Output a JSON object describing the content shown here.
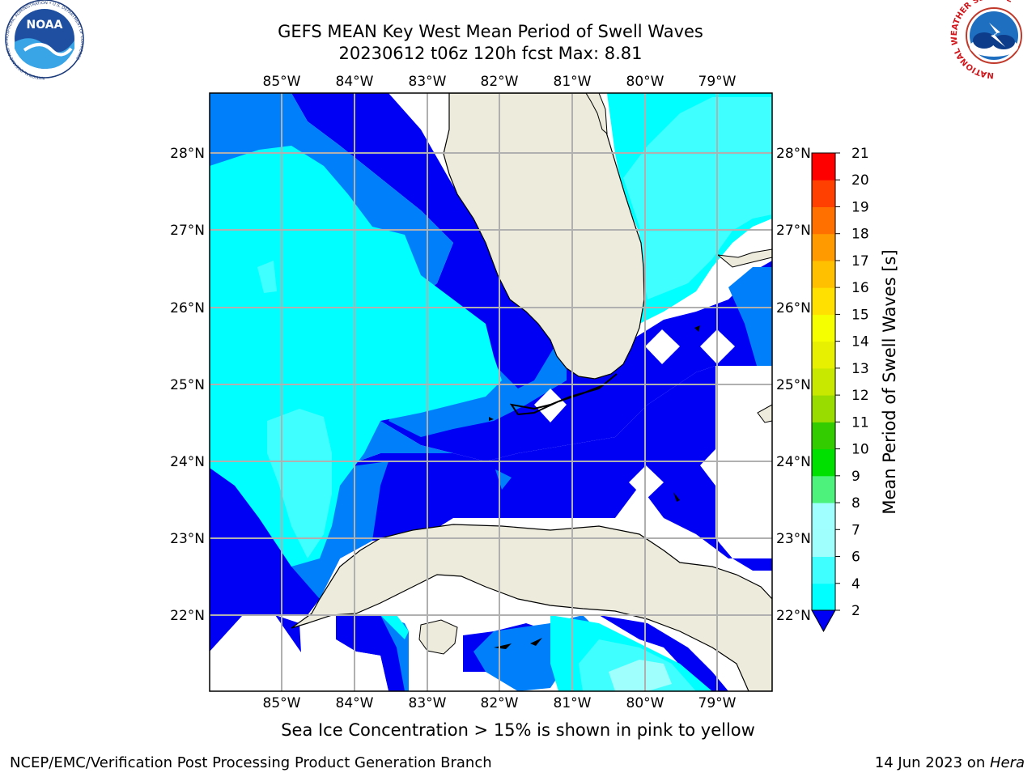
{
  "title": {
    "line1": "GEFS MEAN Key West Mean Period of Swell Waves",
    "line2": "20230612 t06z 120h fcst   Max: 8.81"
  },
  "map": {
    "lon_labels": [
      "85°W",
      "84°W",
      "83°W",
      "82°W",
      "81°W",
      "80°W",
      "79°W"
    ],
    "lat_labels": [
      "28°N",
      "27°N",
      "26°N",
      "25°N",
      "24°N",
      "23°N",
      "22°N"
    ],
    "colors": {
      "land": "#ecebdc",
      "coast": "#000000",
      "grid": "#b0b0b0",
      "band_2_4": "#0000f5",
      "band_4_6": "#007ffb",
      "band_6_7": "#00ffff",
      "band_7_8": "#40ffff",
      "band_8_9": "#9ffffd",
      "nodata": "#ffffff"
    }
  },
  "colorbar": {
    "label": "Mean Period of Swell Waves [s]",
    "ticks": [
      "2",
      "4",
      "6",
      "7",
      "8",
      "9",
      "10",
      "11",
      "12",
      "13",
      "14",
      "15",
      "16",
      "17",
      "18",
      "19",
      "20",
      "21"
    ],
    "colors": [
      "#0070ff",
      "#00ffff",
      "#40ffff",
      "#9ffffd",
      "#a0ffff",
      "#4df27d",
      "#00e000",
      "#33cc00",
      "#99dd00",
      "#c8e800",
      "#e6f000",
      "#f5ff00",
      "#ffe000",
      "#ffc000",
      "#ff9a00",
      "#ff7000",
      "#ff4000",
      "#ff0000"
    ]
  },
  "logos": {
    "noaa_text": "NOAA",
    "noaa_ring": "NATIONAL OCEANIC AND ATMOSPHERIC ADMINISTRATION • U.S. DEPARTMENT OF COMMERCE",
    "nws_ring": "NATIONAL WEATHER SERVICE"
  },
  "footer": {
    "note": "Sea Ice Concentration > 15% is shown in pink to yellow",
    "credit_left": "NCEP/EMC/Verification Post Processing Product Generation Branch",
    "credit_date": "14 Jun 2023 on ",
    "credit_machine": "Hera"
  }
}
